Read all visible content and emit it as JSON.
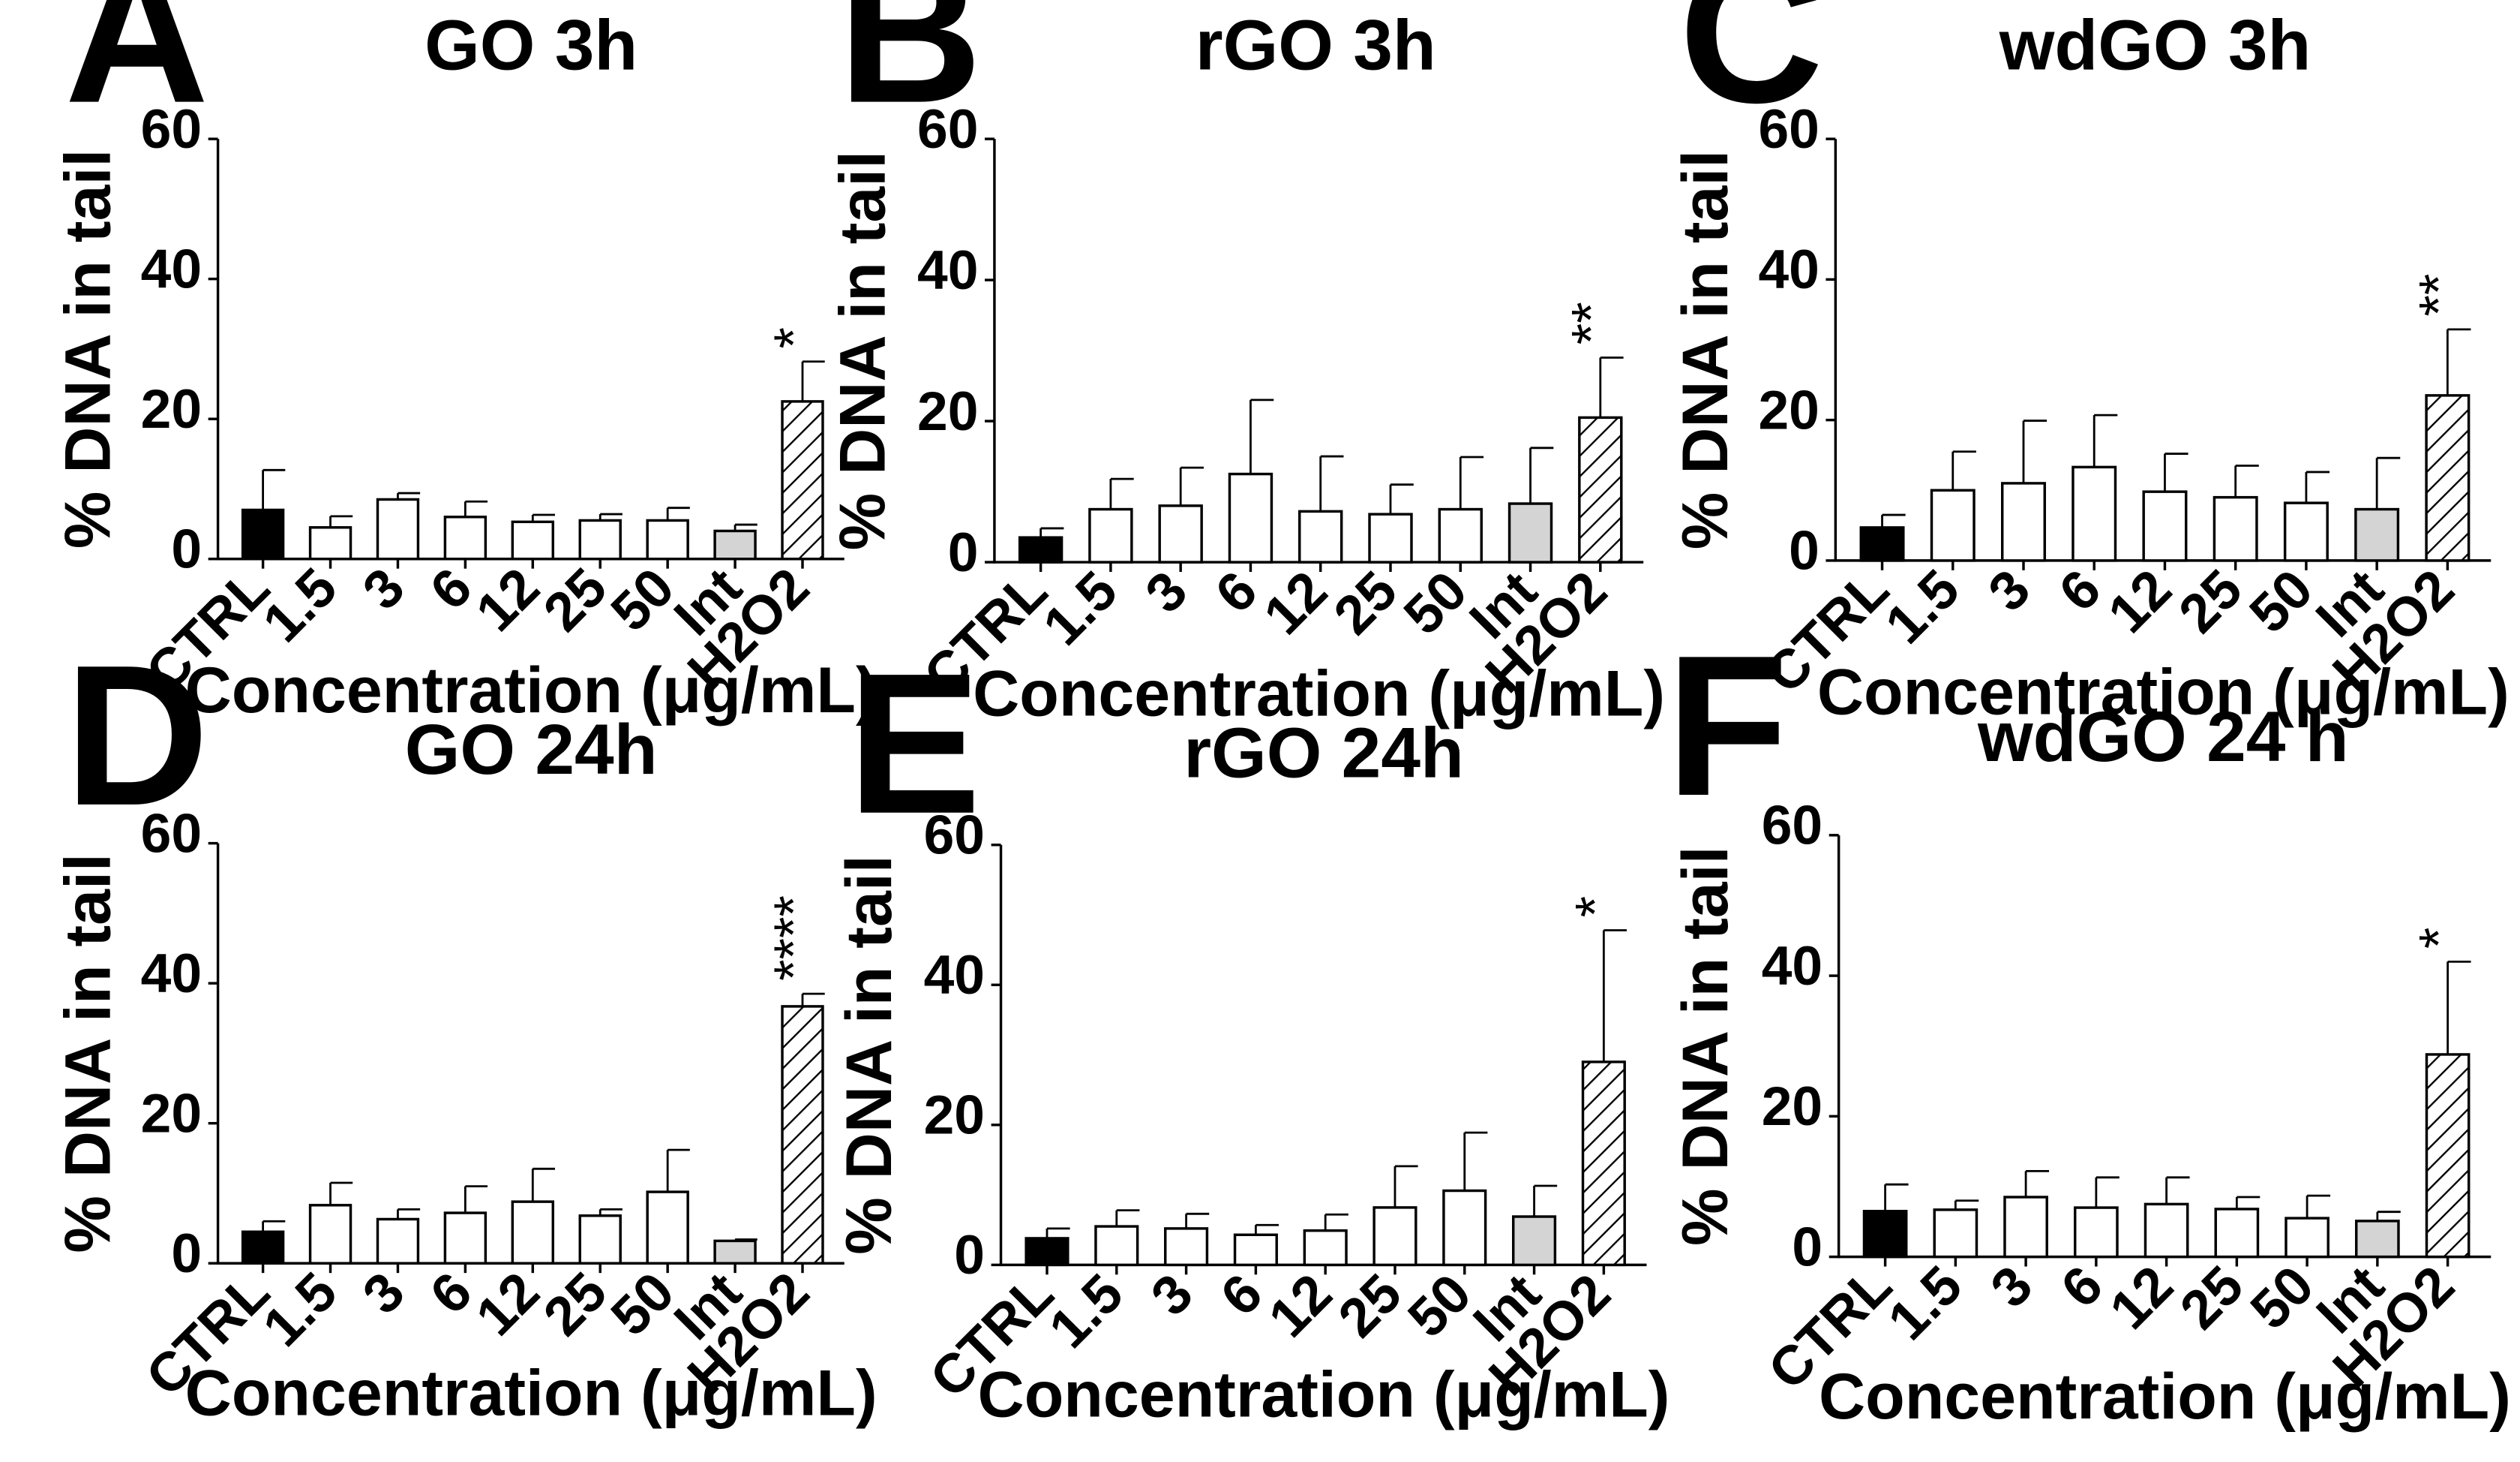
{
  "chart_data": [
    {
      "panel": "A",
      "type": "bar",
      "title": "GO 3h",
      "xlabel": "Concentration (μg/mL)",
      "ylabel": "% DNA in tail",
      "ylim": [
        0,
        60
      ],
      "yticks": [
        "0",
        "20",
        "40",
        "60"
      ],
      "categories": [
        "CTRL",
        "1.5",
        "3",
        "6",
        "12",
        "25",
        "50",
        "Int",
        "H2O2"
      ],
      "values": [
        7,
        4.5,
        8.5,
        6,
        5.3,
        5.5,
        5.5,
        4,
        22.5
      ],
      "errors": [
        5.7,
        1.6,
        0.9,
        2.2,
        1.0,
        0.9,
        1.8,
        0.9,
        5.7
      ],
      "significance": {
        "H2O2": "*"
      }
    },
    {
      "panel": "B",
      "type": "bar",
      "title": "rGO 3h",
      "xlabel": "Concentration (μg/mL)",
      "ylabel": "% DNA in tail",
      "ylim": [
        0,
        60
      ],
      "yticks": [
        "0",
        "20",
        "40",
        "60"
      ],
      "categories": [
        "CTRL",
        "1.5",
        "3",
        "6",
        "12",
        "25",
        "50",
        "Int",
        "H2O2"
      ],
      "values": [
        3.5,
        7.5,
        8,
        12.5,
        7.2,
        6.8,
        7.5,
        8.3,
        20.5
      ],
      "errors": [
        1.3,
        4.3,
        5.4,
        10.5,
        7.8,
        4.2,
        7.4,
        7.9,
        8.5
      ],
      "significance": {
        "H2O2": "**"
      }
    },
    {
      "panel": "C",
      "type": "bar",
      "title": "wdGO 3h",
      "xlabel": "Concentration (μg/mL)",
      "ylabel": "% DNA in tail",
      "ylim": [
        0,
        60
      ],
      "yticks": [
        "0",
        "20",
        "40",
        "60"
      ],
      "categories": [
        "CTRL",
        "1.5",
        "3",
        "6",
        "12",
        "25",
        "50",
        "Int",
        "H2O2"
      ],
      "values": [
        4.7,
        10,
        11,
        13.3,
        9.8,
        9,
        8.2,
        7.3,
        23.5
      ],
      "errors": [
        1.8,
        5.5,
        8.9,
        7.4,
        5.4,
        4.5,
        4.4,
        7.3,
        9.4
      ],
      "significance": {
        "H2O2": "**"
      }
    },
    {
      "panel": "D",
      "type": "bar",
      "title": "GO 24h",
      "xlabel": "Concentration (μg/mL)",
      "ylabel": "% DNA in tail",
      "ylim": [
        0,
        60
      ],
      "yticks": [
        "0",
        "20",
        "40",
        "60"
      ],
      "categories": [
        "CTRL",
        "1.5",
        "3",
        "6",
        "12",
        "25",
        "50",
        "Int",
        "H2O2"
      ],
      "values": [
        4.5,
        8.3,
        6.3,
        7.2,
        8.8,
        6.8,
        10.2,
        3.2,
        36.7
      ],
      "errors": [
        1.5,
        3.2,
        1.4,
        3.8,
        4.7,
        0.9,
        6.0,
        0.2,
        1.8
      ],
      "significance": {
        "H2O2": "****"
      }
    },
    {
      "panel": "E",
      "type": "bar",
      "title": "rGO 24h",
      "xlabel": "Concentration (μg/mL)",
      "ylabel": "% DNA in tail",
      "ylim": [
        0,
        60
      ],
      "yticks": [
        "0",
        "20",
        "40",
        "60"
      ],
      "categories": [
        "CTRL",
        "1.5",
        "3",
        "6",
        "12",
        "25",
        "50",
        "Int",
        "H2O2"
      ],
      "values": [
        3.8,
        5.5,
        5.2,
        4.3,
        4.9,
        8.2,
        10.6,
        6.9,
        29
      ],
      "errors": [
        1.4,
        2.3,
        2.1,
        1.4,
        2.3,
        5.9,
        8.3,
        4.4,
        18.8
      ],
      "significance": {
        "H2O2": "*"
      }
    },
    {
      "panel": "F",
      "type": "bar",
      "title": "wdGO 24 h",
      "xlabel": "Concentration (μg/mL)",
      "ylabel": "% DNA in tail",
      "ylim": [
        0,
        60
      ],
      "yticks": [
        "0",
        "20",
        "40",
        "60"
      ],
      "categories": [
        "CTRL",
        "1.5",
        "3",
        "6",
        "12",
        "25",
        "50",
        "Int",
        "H2O2"
      ],
      "values": [
        6.5,
        6.7,
        8.5,
        7,
        7.5,
        6.8,
        5.5,
        5.1,
        28.8
      ],
      "errors": [
        3.8,
        1.3,
        3.7,
        4.3,
        3.8,
        1.7,
        3.2,
        1.3,
        13.2
      ],
      "significance": {
        "H2O2": "*"
      }
    }
  ],
  "bar_styles": [
    "solid-black",
    "white",
    "white",
    "white",
    "white",
    "white",
    "white",
    "light-grey",
    "diagonal-hatch"
  ],
  "colors": {
    "black": "#000000",
    "white": "#ffffff",
    "light_grey": "#d4d4d4",
    "hatch": "#000000"
  }
}
